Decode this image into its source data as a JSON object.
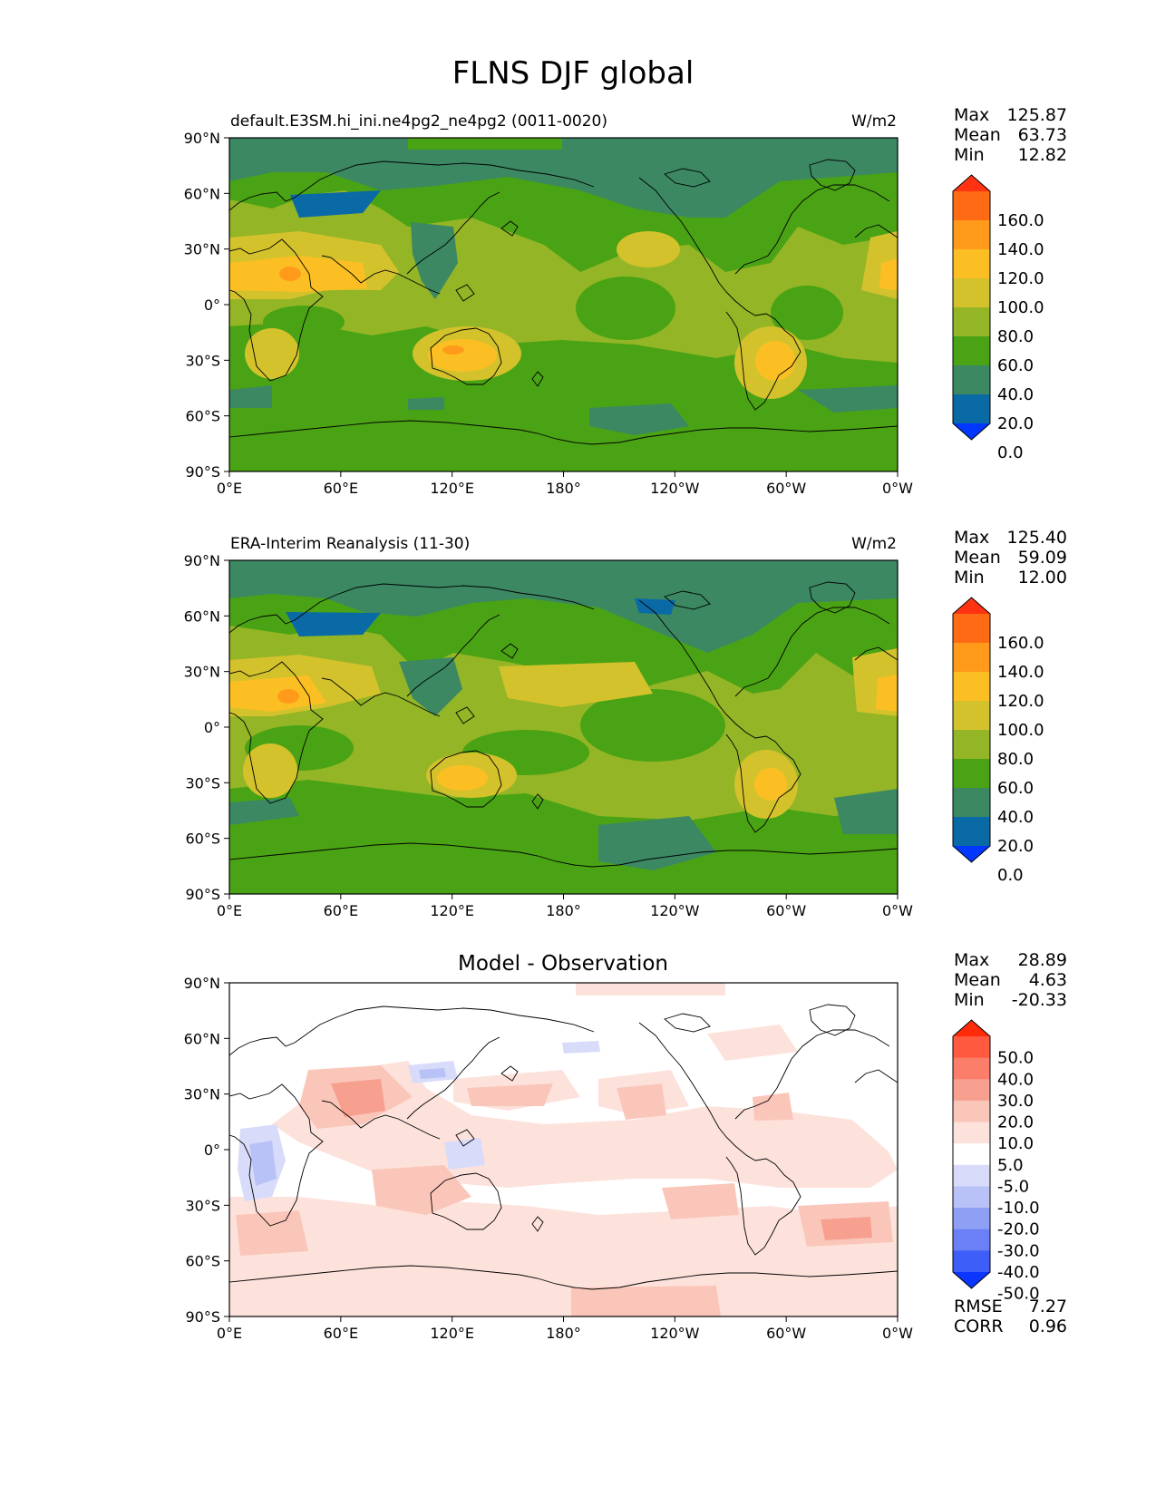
{
  "title": "FLNS DJF global",
  "lon_ticks": [
    "0°E",
    "60°E",
    "120°E",
    "180°",
    "120°W",
    "60°W",
    "0°W"
  ],
  "lat_ticks": [
    "90°N",
    "60°N",
    "30°N",
    "0°",
    "30°S",
    "60°S",
    "90°S"
  ],
  "panels": [
    {
      "left_title": "default.E3SM.hi_ini.ne4pg2_ne4pg2 (0011-0020)",
      "center_title": "",
      "units": "W/m2",
      "stats": [
        [
          "Max",
          "125.87"
        ],
        [
          "Mean",
          "63.73"
        ],
        [
          "Min",
          "12.82"
        ]
      ],
      "extra_stats": []
    },
    {
      "left_title": "ERA-Interim Reanalysis (11-30)",
      "center_title": "",
      "units": "W/m2",
      "stats": [
        [
          "Max",
          "125.40"
        ],
        [
          "Mean",
          "59.09"
        ],
        [
          "Min",
          "12.00"
        ]
      ],
      "extra_stats": []
    },
    {
      "left_title": "",
      "center_title": "Model - Observation",
      "units": "",
      "stats": [
        [
          "Max",
          "28.89"
        ],
        [
          "Mean",
          "4.63"
        ],
        [
          "Min",
          "-20.33"
        ]
      ],
      "extra_stats": [
        [
          "RMSE",
          "7.27"
        ],
        [
          "CORR",
          "0.96"
        ]
      ]
    }
  ],
  "colorbars": {
    "field": {
      "labels": [
        "160.0",
        "140.0",
        "120.0",
        "100.0",
        "80.0",
        "60.0",
        "40.0",
        "20.0",
        "0.0"
      ],
      "colors": [
        "#ff3311",
        "#ff6a14",
        "#ff9a1a",
        "#fbbf24",
        "#d4c22c",
        "#93b526",
        "#4aa314",
        "#3b8863",
        "#0a6aa6",
        "#0038ff"
      ]
    },
    "diff": {
      "labels": [
        "50.0",
        "40.0",
        "30.0",
        "20.0",
        "10.0",
        "5.0",
        "-5.0",
        "-10.0",
        "-20.0",
        "-30.0",
        "-40.0",
        "-50.0"
      ],
      "colors": [
        "#ff2a0a",
        "#ff5a40",
        "#fa7e6a",
        "#f8a090",
        "#fbc6ba",
        "#fde2dc",
        "#ffffff",
        "#d8dcfa",
        "#b8c2f6",
        "#8fa0f4",
        "#6a80f4",
        "#3d5ef8",
        "#0a36ff"
      ]
    }
  },
  "chart_data": [
    {
      "type": "heatmap",
      "title": "default.E3SM.hi_ini.ne4pg2_ne4pg2 (0011-0020)",
      "units": "W/m2",
      "x": "longitude 0°E to 0°W",
      "y": "latitude 90°S to 90°N",
      "levels": [
        0,
        20,
        40,
        60,
        80,
        100,
        120,
        140,
        160
      ],
      "stats": {
        "max": 125.87,
        "mean": 63.73,
        "min": 12.82
      }
    },
    {
      "type": "heatmap",
      "title": "ERA-Interim Reanalysis (11-30)",
      "units": "W/m2",
      "x": "longitude 0°E to 0°W",
      "y": "latitude 90°S to 90°N",
      "levels": [
        0,
        20,
        40,
        60,
        80,
        100,
        120,
        140,
        160
      ],
      "stats": {
        "max": 125.4,
        "mean": 59.09,
        "min": 12.0
      }
    },
    {
      "type": "heatmap",
      "title": "Model - Observation",
      "x": "longitude 0°E to 0°W",
      "y": "latitude 90°S to 90°N",
      "levels": [
        -50,
        -40,
        -30,
        -20,
        -10,
        -5,
        5,
        10,
        20,
        30,
        40,
        50
      ],
      "stats": {
        "max": 28.89,
        "mean": 4.63,
        "min": -20.33,
        "rmse": 7.27,
        "corr": 0.96
      }
    }
  ]
}
